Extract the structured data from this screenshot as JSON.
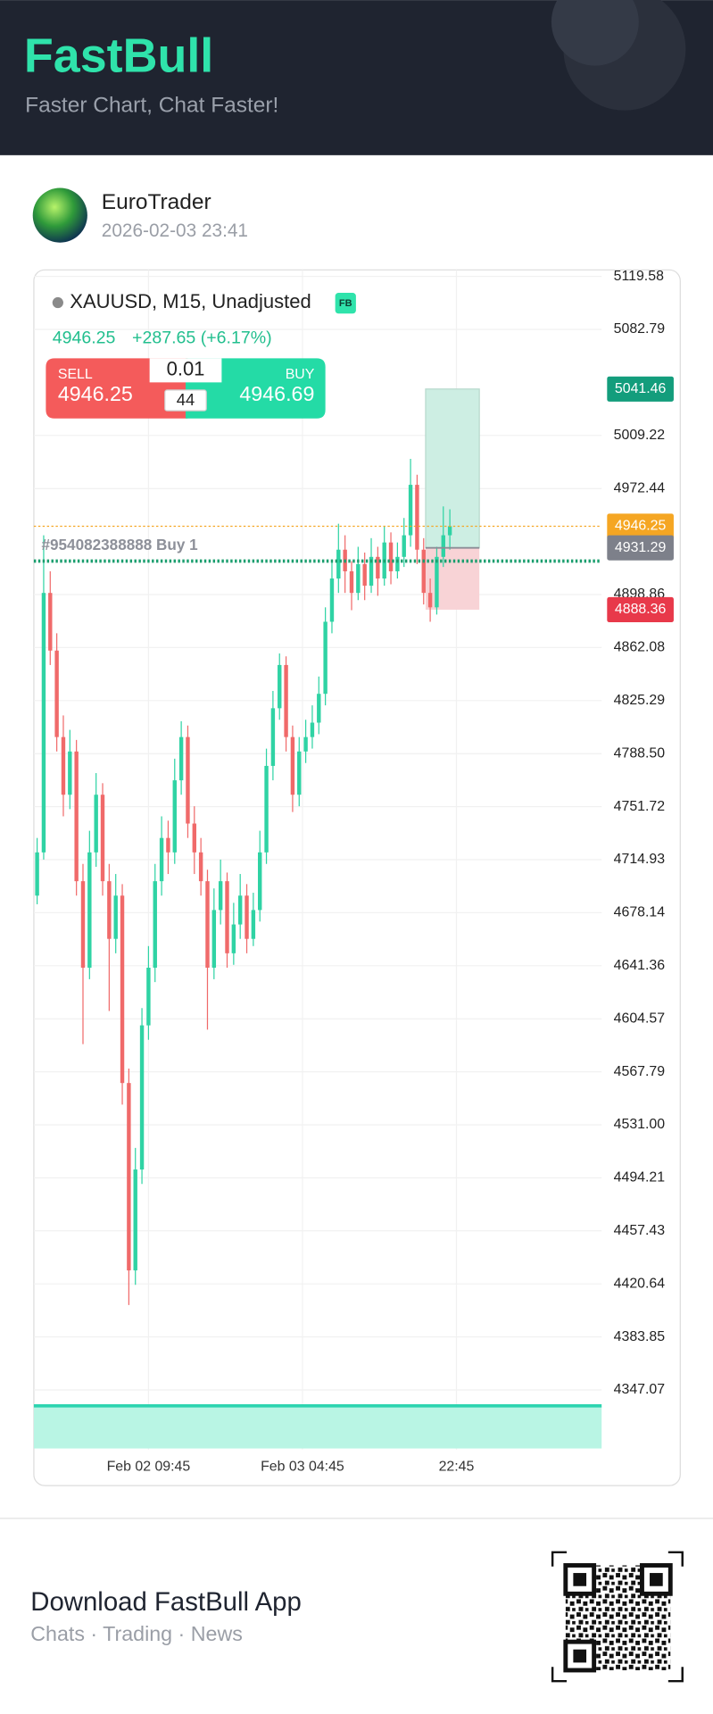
{
  "header": {
    "title": "FastBull",
    "subtitle": "Faster Chart, Chat Faster!"
  },
  "post": {
    "author": "EuroTrader",
    "date": "2026-02-03 23:41"
  },
  "chart_data": {
    "type": "candlestick",
    "title": "XAUUSD, M15, Unadjusted",
    "badge": "FB",
    "last_price": 4946.25,
    "change": "+287.65 (+6.17%)",
    "trade": {
      "sell_label": "SELL",
      "sell_price": 4946.25,
      "buy_label": "BUY",
      "buy_price": 4946.69,
      "quantity": 0.01,
      "spread": 44
    },
    "candles": {
      "open": [
        4690,
        4720,
        4900,
        4860,
        4800,
        4760,
        4790,
        4700,
        4640,
        4720,
        4760,
        4700,
        4660,
        4690,
        4560,
        4430,
        4500,
        4600,
        4640,
        4700,
        4730,
        4720,
        4770,
        4800,
        4740,
        4720,
        4700,
        4640,
        4680,
        4700,
        4650,
        4670,
        4690,
        4660,
        4680,
        4720,
        4780,
        4820,
        4850,
        4800,
        4760,
        4790,
        4800,
        4810,
        4830,
        4880,
        4910,
        4930,
        4915,
        4900,
        4920,
        4905,
        4925,
        4910,
        4935,
        4915,
        4925,
        4940,
        4975,
        4930,
        4900,
        4890,
        4925,
        4940
      ],
      "high": [
        4730,
        4940,
        4915,
        4872,
        4815,
        4805,
        4798,
        4712,
        4735,
        4775,
        4768,
        4712,
        4705,
        4698,
        4570,
        4515,
        4612,
        4655,
        4712,
        4745,
        4742,
        4785,
        4811,
        4808,
        4752,
        4730,
        4708,
        4695,
        4715,
        4706,
        4685,
        4705,
        4698,
        4692,
        4735,
        4792,
        4832,
        4858,
        4856,
        4808,
        4800,
        4812,
        4822,
        4842,
        4890,
        4922,
        4948,
        4940,
        4922,
        4932,
        4928,
        4938,
        4932,
        4946,
        4942,
        4935,
        4952,
        4993,
        4982,
        4938,
        4910,
        4932,
        4960,
        4958
      ],
      "low": [
        4684,
        4715,
        4850,
        4790,
        4745,
        4750,
        4690,
        4587,
        4632,
        4710,
        4690,
        4610,
        4650,
        4545,
        4406,
        4420,
        4490,
        4590,
        4630,
        4690,
        4705,
        4712,
        4760,
        4730,
        4705,
        4690,
        4597,
        4632,
        4670,
        4640,
        4642,
        4660,
        4650,
        4655,
        4672,
        4712,
        4770,
        4812,
        4790,
        4748,
        4752,
        4782,
        4792,
        4802,
        4822,
        4872,
        4900,
        4900,
        4888,
        4895,
        4895,
        4900,
        4898,
        4905,
        4906,
        4910,
        4918,
        4932,
        4920,
        4892,
        4880,
        4885,
        4918,
        4930
      ],
      "close": [
        4720,
        4900,
        4860,
        4800,
        4760,
        4790,
        4700,
        4640,
        4720,
        4760,
        4700,
        4660,
        4690,
        4560,
        4430,
        4500,
        4600,
        4640,
        4700,
        4730,
        4720,
        4770,
        4800,
        4740,
        4720,
        4700,
        4640,
        4680,
        4700,
        4650,
        4670,
        4690,
        4660,
        4680,
        4720,
        4780,
        4820,
        4850,
        4800,
        4760,
        4790,
        4800,
        4810,
        4830,
        4880,
        4910,
        4930,
        4915,
        4900,
        4920,
        4905,
        4925,
        4910,
        4935,
        4915,
        4925,
        4940,
        4975,
        4930,
        4900,
        4890,
        4925,
        4940,
        4946.25
      ]
    },
    "colors": {
      "up": "#2fd3a4",
      "down": "#f06a6a"
    },
    "xticks": [
      {
        "value": 17,
        "label": "Feb 02 09:45"
      },
      {
        "value": 40.5,
        "label": "Feb 03 04:45"
      },
      {
        "value": 64,
        "label": "22:45"
      }
    ],
    "ylim": [
      4305.7,
      5124.1
    ],
    "yticks": [
      5119.58,
      5082.79,
      5009.22,
      4972.44,
      4898.86,
      4862.08,
      4825.29,
      {
        "value": 4788.5,
        "label": "4788.50"
      },
      4751.72,
      4714.93,
      4678.14,
      4641.36,
      4604.57,
      4567.79,
      {
        "value": 4531,
        "label": "4531.00"
      },
      4494.21,
      4457.43,
      4420.64,
      4383.85,
      4347.07
    ],
    "grid": true,
    "price_tags": [
      {
        "value": 5041.46,
        "color": "#139d7c"
      },
      {
        "value": 4946.25,
        "color": "#f5a623"
      },
      {
        "value": 4931.29,
        "color": "#7d808a"
      },
      {
        "value": 4888.36,
        "color": "#e8394a"
      }
    ],
    "position": {
      "target": 5041.46,
      "entry": 4931.29,
      "stop": 4888.36,
      "start_index": 59.3,
      "end_index": 67.5
    },
    "order": {
      "label": "#954082388888 Buy 1",
      "price": 4922.1
    }
  },
  "footer": {
    "title": "Download FastBull App",
    "subtitle": "Chats · Trading · News"
  }
}
